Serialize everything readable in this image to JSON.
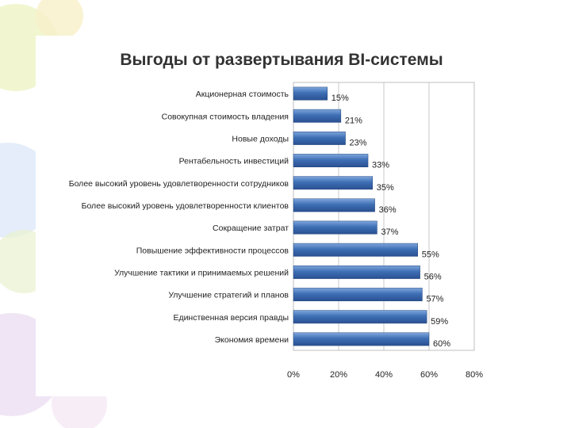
{
  "chart_data": {
    "type": "bar",
    "orientation": "horizontal",
    "title": "Выгоды от развертывания BI-системы",
    "categories": [
      "Акционерная стоимость",
      "Совокупная стоимость владения",
      "Новые доходы",
      "Рентабельность инвестиций",
      "Более высокий уровень удовлетворенности сотрудников",
      "Более высокий уровень удовлетворенности клиентов",
      "Сокращение затрат",
      "Повышение эффективности процессов",
      "Улучшение тактики и принимаемых решений",
      "Улучшение стратегий и планов",
      "Единственная версия правды",
      "Экономия времени"
    ],
    "values": [
      15,
      21,
      23,
      33,
      35,
      36,
      37,
      55,
      56,
      57,
      59,
      60
    ],
    "data_labels": [
      "15%",
      "21%",
      "23%",
      "33%",
      "35%",
      "36%",
      "37%",
      "55%",
      "56%",
      "57%",
      "59%",
      "60%"
    ],
    "xlim": [
      0,
      80
    ],
    "x_ticks": [
      "0%",
      "20%",
      "40%",
      "60%",
      "80%"
    ],
    "grid": true,
    "legend": "none",
    "bar_color": "#3e6fb5"
  }
}
